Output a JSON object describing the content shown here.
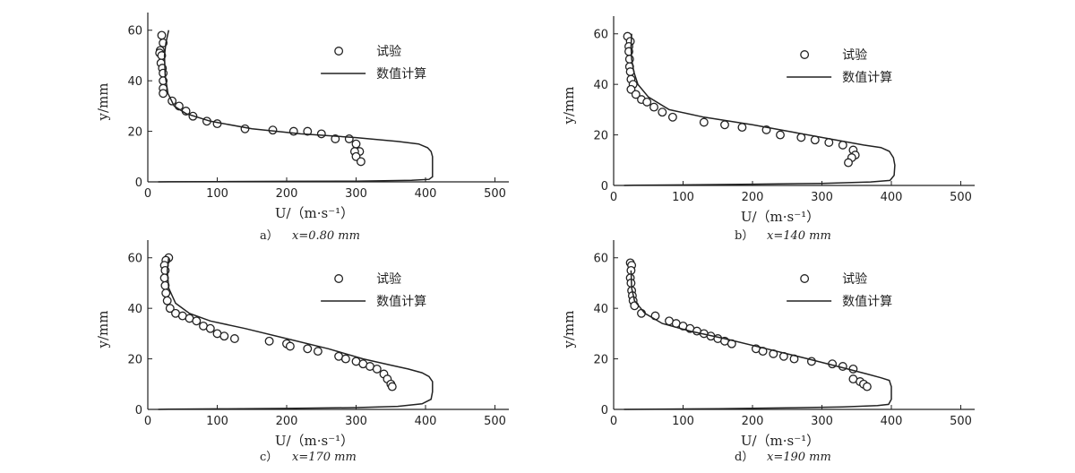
{
  "chart_data": [
    {
      "type": "scatter",
      "caption_letter": "a）",
      "caption_value": "x=0.80 mm",
      "xlabel": "U/（m·s⁻¹）",
      "ylabel": "y/mm",
      "xlim": [
        0,
        520
      ],
      "ylim": [
        0,
        67
      ],
      "xticks": [
        0,
        100,
        200,
        300,
        400,
        500
      ],
      "yticks": [
        0,
        20,
        40,
        60
      ],
      "grid": false,
      "legend_position": "top-right",
      "series": [
        {
          "name": "试验",
          "style": "open-circle",
          "x": [
            20,
            22,
            18,
            17,
            20,
            19,
            21,
            22,
            22,
            22,
            22,
            35,
            45,
            55,
            65,
            85,
            100,
            140,
            180,
            210,
            230,
            250,
            270,
            290,
            300,
            305,
            298,
            300,
            307
          ],
          "y": [
            58,
            55,
            52,
            51,
            50,
            47,
            45,
            43,
            40,
            37,
            35,
            32,
            30,
            28,
            26,
            24,
            23,
            21,
            20.5,
            20,
            20,
            19,
            17,
            17,
            15,
            12,
            12,
            10,
            8
          ]
        },
        {
          "name": "数值计算",
          "style": "line",
          "x": [
            30,
            26,
            24,
            25,
            29,
            38,
            55,
            90,
            150,
            220,
            300,
            360,
            390,
            403,
            408,
            410,
            410,
            410,
            405,
            380,
            300,
            200,
            100,
            30,
            15
          ],
          "y": [
            60,
            55,
            50,
            42,
            35,
            30,
            27,
            24,
            21,
            19,
            17.5,
            16,
            15,
            13.5,
            12,
            10,
            6,
            2,
            1,
            0.6,
            0.3,
            0.2,
            0.1,
            0.05,
            0
          ]
        }
      ]
    },
    {
      "type": "scatter",
      "caption_letter": "b）",
      "caption_value": "x=140 mm",
      "xlabel": "U/（m·s⁻¹）",
      "ylabel": "y/mm",
      "xlim": [
        0,
        520
      ],
      "ylim": [
        0,
        67
      ],
      "xticks": [
        0,
        100,
        200,
        300,
        400,
        500
      ],
      "yticks": [
        0,
        20,
        40,
        60
      ],
      "grid": false,
      "legend_position": "top-right",
      "series": [
        {
          "name": "试验",
          "style": "open-circle",
          "x": [
            20,
            24,
            22,
            22,
            23,
            23,
            24,
            25,
            28,
            25,
            32,
            40,
            48,
            58,
            70,
            85,
            130,
            160,
            185,
            220,
            240,
            270,
            290,
            310,
            330,
            345,
            348,
            343,
            338
          ],
          "y": [
            59,
            57,
            55,
            53,
            50,
            47,
            45,
            42,
            40,
            38,
            36,
            34,
            33,
            31,
            29,
            27,
            25,
            24,
            23,
            22,
            20,
            19,
            18,
            17,
            16,
            14,
            12,
            11,
            9
          ]
        },
        {
          "name": "数值计算",
          "style": "line",
          "x": [
            26,
            25,
            26,
            29,
            35,
            50,
            80,
            130,
            200,
            260,
            320,
            360,
            385,
            397,
            403,
            405,
            404,
            398,
            370,
            300,
            200,
            100,
            30,
            15
          ],
          "y": [
            60,
            55,
            50,
            45,
            40,
            35,
            30,
            27,
            24,
            21,
            18,
            16,
            15,
            13.5,
            11,
            8,
            4,
            2,
            1.4,
            0.8,
            0.5,
            0.2,
            0.1,
            0
          ]
        }
      ]
    },
    {
      "type": "scatter",
      "caption_letter": "c）",
      "caption_value": "x=170 mm",
      "xlabel": "U/（m·s⁻¹）",
      "ylabel": "y/mm",
      "xlim": [
        0,
        520
      ],
      "ylim": [
        0,
        67
      ],
      "xticks": [
        0,
        100,
        200,
        300,
        400,
        500
      ],
      "yticks": [
        0,
        20,
        40,
        60
      ],
      "grid": false,
      "legend_position": "top-right",
      "series": [
        {
          "name": "试验",
          "style": "open-circle",
          "x": [
            30,
            26,
            24,
            25,
            24,
            25,
            26,
            28,
            32,
            40,
            50,
            60,
            70,
            80,
            90,
            100,
            110,
            125,
            175,
            200,
            205,
            230,
            245,
            275,
            285,
            300,
            310,
            320,
            330,
            340,
            345,
            350,
            352
          ],
          "y": [
            60,
            59,
            57,
            55,
            52,
            49,
            46,
            43,
            40,
            38,
            37,
            36,
            35,
            33,
            32,
            30,
            29,
            28,
            27,
            26,
            25,
            24,
            23,
            21,
            20,
            19,
            18,
            17,
            16,
            14,
            12,
            10,
            9
          ]
        },
        {
          "name": "数值计算",
          "style": "line",
          "x": [
            30,
            28,
            30,
            40,
            60,
            90,
            140,
            200,
            260,
            310,
            350,
            375,
            395,
            405,
            410,
            410,
            408,
            395,
            360,
            300,
            200,
            100,
            30,
            15
          ],
          "y": [
            60,
            55,
            48,
            42,
            38,
            35,
            32,
            28,
            24,
            20,
            17.5,
            16,
            14.5,
            13,
            11,
            7,
            4,
            2.2,
            1.2,
            0.7,
            0.4,
            0.2,
            0.1,
            0
          ]
        }
      ]
    },
    {
      "type": "scatter",
      "caption_letter": "d）",
      "caption_value": "x=190 mm",
      "xlabel": "U/（m·s⁻¹）",
      "ylabel": "y/mm",
      "xlim": [
        0,
        520
      ],
      "ylim": [
        0,
        67
      ],
      "xticks": [
        0,
        100,
        200,
        300,
        400,
        500
      ],
      "yticks": [
        0,
        20,
        40,
        60
      ],
      "grid": false,
      "legend_position": "top-right",
      "series": [
        {
          "name": "试验",
          "style": "open-circle",
          "x": [
            24,
            26,
            25,
            24,
            25,
            26,
            27,
            28,
            30,
            40,
            60,
            80,
            90,
            100,
            110,
            120,
            130,
            140,
            150,
            160,
            170,
            205,
            215,
            230,
            245,
            260,
            285,
            315,
            330,
            345,
            345,
            355,
            360,
            365
          ],
          "y": [
            58,
            57,
            55,
            52,
            50,
            47,
            45,
            43,
            41,
            38,
            37,
            35,
            34,
            33,
            32,
            31,
            30,
            29,
            28,
            27,
            26,
            24,
            23,
            22,
            21,
            20,
            19,
            18,
            17,
            16,
            12,
            11,
            10,
            9
          ]
        },
        {
          "name": "数值计算",
          "style": "line",
          "x": [
            25,
            26,
            30,
            45,
            70,
            110,
            160,
            220,
            280,
            330,
            365,
            385,
            397,
            400,
            400,
            396,
            380,
            330,
            250,
            150,
            60,
            15
          ],
          "y": [
            55,
            48,
            43,
            38,
            34,
            31,
            28,
            24,
            20,
            16.5,
            14,
            12.5,
            11.5,
            9,
            4,
            2,
            1.5,
            1,
            0.6,
            0.3,
            0.1,
            0
          ]
        }
      ]
    }
  ]
}
